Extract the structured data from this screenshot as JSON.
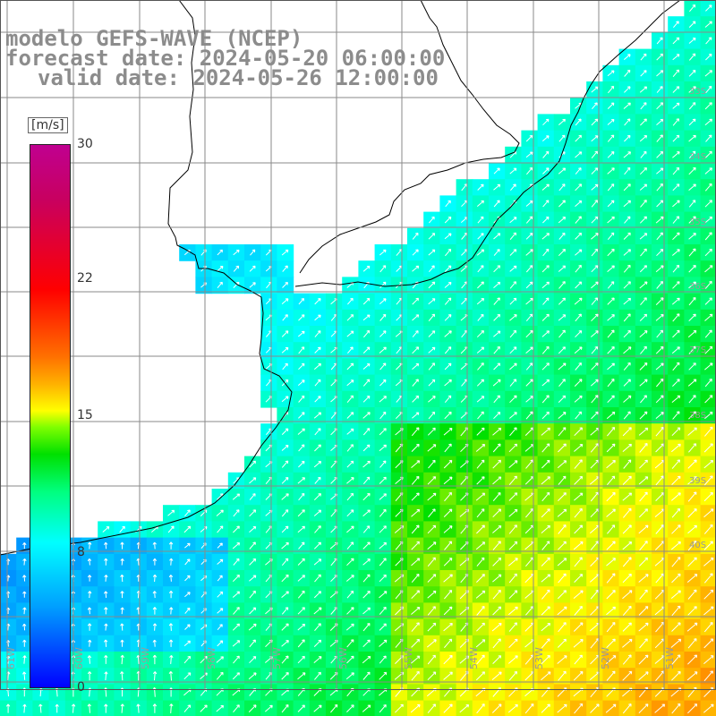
{
  "title": {
    "line1": "modelo GEFS-WAVE (NCEP)",
    "line2": "forecast date: 2024-05-20 06:00:00",
    "line3": "valid date: 2024-05-26 12:00:00"
  },
  "colorbar": {
    "unit": "[m/s]",
    "min": 0,
    "max": 30,
    "ticks": [
      "0",
      "8",
      "15",
      "22",
      "30"
    ],
    "stops": [
      "#0000ff",
      "#00a0ff",
      "#00ffff",
      "#00ff80",
      "#00e000",
      "#ffff00",
      "#ff7000",
      "#ff0000",
      "#c00090"
    ]
  },
  "axes": {
    "longitude_labels": [
      "61W",
      "60W",
      "59W",
      "58W",
      "57W",
      "56W",
      "55W",
      "54W",
      "53W",
      "52W",
      "51W"
    ],
    "latitude_labels": [
      "33S",
      "34S",
      "35S",
      "36S",
      "37S",
      "38S",
      "39S",
      "40S"
    ]
  },
  "colors": {
    "land": "#ffffff",
    "coast": "#000000",
    "grid": "#8a8a8a",
    "arrow": "#ffffff",
    "title": "#8c8c8c"
  }
}
